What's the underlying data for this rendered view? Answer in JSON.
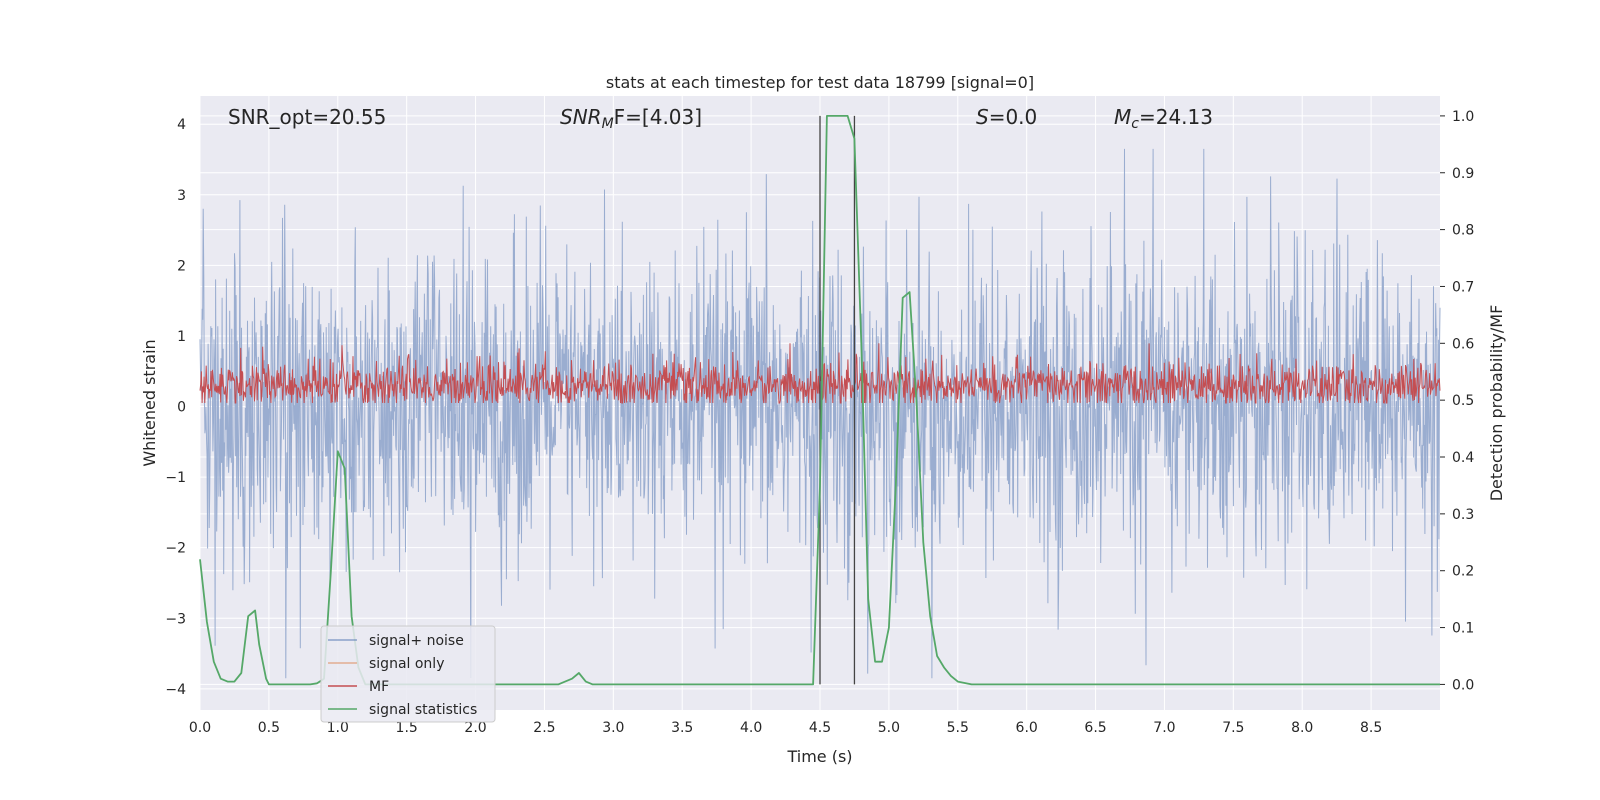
{
  "chart_data": {
    "type": "line",
    "title": "stats at each timestep for test data 18799 [signal=0]",
    "xlabel": "Time (s)",
    "ylabel_left": "Whitened strain",
    "ylabel_right": "Detection probability/MF",
    "xlim": [
      0.0,
      9.0
    ],
    "ylim_left": [
      -4.3,
      4.4
    ],
    "ylim_right": [
      -0.045,
      1.035
    ],
    "x_ticks": [
      "0.0",
      "0.5",
      "1.0",
      "1.5",
      "2.0",
      "2.5",
      "3.0",
      "3.5",
      "4.0",
      "4.5",
      "5.0",
      "5.5",
      "6.0",
      "6.5",
      "7.0",
      "7.5",
      "8.0",
      "8.5"
    ],
    "y_ticks_left": [
      "4",
      "3",
      "2",
      "1",
      "0",
      "−1",
      "−2",
      "−3",
      "−4"
    ],
    "y_ticks_right": [
      "1.0",
      "0.9",
      "0.8",
      "0.7",
      "0.6",
      "0.5",
      "0.4",
      "0.3",
      "0.2",
      "0.1",
      "0.0"
    ],
    "grid": true,
    "background": "#EAEAF2",
    "annotations": {
      "snr_opt": "SNR_opt=20.55",
      "snr_mf_main": "SNR",
      "snr_mf_sub": "M",
      "snr_mf_rest": "F=[4.03]",
      "s_main": "S",
      "s_rest": "=0.0",
      "mc_main": "M",
      "mc_sub": "c",
      "mc_rest": "=24.13"
    },
    "vlines": [
      4.5,
      4.75
    ],
    "legend": {
      "position": "lower-left",
      "entries": [
        {
          "label": "signal+ noise",
          "color": "#4C72B0"
        },
        {
          "label": "signal only",
          "color": "#DD8452"
        },
        {
          "label": "MF",
          "color": "#C44E52"
        },
        {
          "label": "signal statistics",
          "color": "#55A868"
        }
      ]
    },
    "series": [
      {
        "name": "signal+ noise",
        "axis": "left",
        "color": "#9AADD0",
        "description_range": [
          -3.9,
          3.7
        ],
        "typical_envelope": [
          -2.0,
          2.2
        ]
      },
      {
        "name": "MF",
        "axis": "right",
        "color": "#C44E52",
        "typical_range": [
          0.5,
          0.58
        ]
      },
      {
        "name": "signal statistics",
        "axis": "right",
        "color": "#55A868",
        "x": [
          0.0,
          0.05,
          0.1,
          0.15,
          0.2,
          0.25,
          0.3,
          0.35,
          0.4,
          0.43,
          0.48,
          0.5,
          0.55,
          0.6,
          0.7,
          0.8,
          0.85,
          0.9,
          0.95,
          1.0,
          1.05,
          1.1,
          1.15,
          1.2,
          1.25,
          1.3,
          1.5,
          2.0,
          2.5,
          2.6,
          2.7,
          2.75,
          2.8,
          2.85,
          2.9,
          3.0,
          3.5,
          4.0,
          4.4,
          4.45,
          4.5,
          4.55,
          4.6,
          4.7,
          4.75,
          4.8,
          4.85,
          4.9,
          4.95,
          5.0,
          5.05,
          5.1,
          5.15,
          5.2,
          5.25,
          5.3,
          5.35,
          5.4,
          5.45,
          5.5,
          5.6,
          5.7,
          6.0,
          7.0,
          8.0,
          9.0
        ],
        "y": [
          0.22,
          0.11,
          0.04,
          0.01,
          0.005,
          0.005,
          0.02,
          0.12,
          0.13,
          0.07,
          0.01,
          0.0,
          0.0,
          0.0,
          0.0,
          0.0,
          0.002,
          0.01,
          0.2,
          0.41,
          0.38,
          0.12,
          0.03,
          0.0,
          0.0,
          0.0,
          0.0,
          0.0,
          0.0,
          0.0,
          0.01,
          0.02,
          0.005,
          0.0,
          0.0,
          0.0,
          0.0,
          0.0,
          0.0,
          0.0,
          0.35,
          1.0,
          1.0,
          1.0,
          0.96,
          0.6,
          0.15,
          0.04,
          0.04,
          0.1,
          0.35,
          0.68,
          0.69,
          0.5,
          0.25,
          0.12,
          0.05,
          0.03,
          0.015,
          0.005,
          0.0,
          0.0,
          0.0,
          0.0,
          0.0,
          0.0
        ]
      }
    ]
  }
}
